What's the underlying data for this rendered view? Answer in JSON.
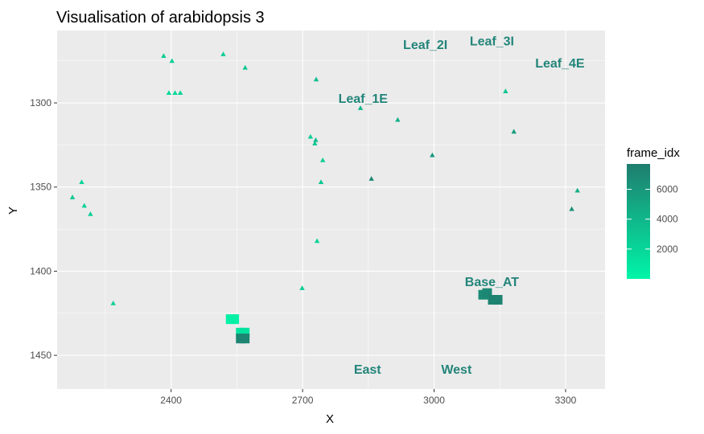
{
  "chart_data": {
    "type": "scatter",
    "title": "Visualisation of arabidopsis  3",
    "xlabel": "X",
    "ylabel": "Y",
    "xlim": [
      2140,
      3390
    ],
    "ylim": [
      1470,
      1257
    ],
    "y_reversed": true,
    "x_ticks": [
      2400,
      2700,
      3000,
      3300
    ],
    "y_ticks": [
      1300,
      1350,
      1400,
      1450
    ],
    "grid": true,
    "legend": {
      "title": "frame_idx",
      "position": "right",
      "min": 0,
      "max": 7700,
      "ticks": [
        2000,
        4000,
        6000
      ],
      "low_color": "#00f5a8",
      "high_color": "#1f7d6e"
    },
    "label_color": "#23857a",
    "triangle_points": [
      {
        "x": 2383,
        "y": 1272,
        "f": 2500
      },
      {
        "x": 2402,
        "y": 1275,
        "f": 2500
      },
      {
        "x": 2519,
        "y": 1271,
        "f": 2500
      },
      {
        "x": 2569,
        "y": 1279,
        "f": 3000
      },
      {
        "x": 2395,
        "y": 1294,
        "f": 1800
      },
      {
        "x": 2409,
        "y": 1294,
        "f": 1800
      },
      {
        "x": 2421,
        "y": 1294,
        "f": 2200
      },
      {
        "x": 2731,
        "y": 1286,
        "f": 3500
      },
      {
        "x": 2832,
        "y": 1303,
        "f": 4000
      },
      {
        "x": 2917,
        "y": 1310,
        "f": 4500
      },
      {
        "x": 3163,
        "y": 1293,
        "f": 3000
      },
      {
        "x": 3182,
        "y": 1317,
        "f": 5500
      },
      {
        "x": 2718,
        "y": 1320,
        "f": 2500
      },
      {
        "x": 2728,
        "y": 1324,
        "f": 3000
      },
      {
        "x": 2730,
        "y": 1322,
        "f": 3500
      },
      {
        "x": 2746,
        "y": 1334,
        "f": 2500
      },
      {
        "x": 2742,
        "y": 1347,
        "f": 2800
      },
      {
        "x": 2996,
        "y": 1331,
        "f": 6000
      },
      {
        "x": 2857,
        "y": 1345,
        "f": 7000
      },
      {
        "x": 2196,
        "y": 1347,
        "f": 2000
      },
      {
        "x": 2175,
        "y": 1356,
        "f": 3000
      },
      {
        "x": 2202,
        "y": 1361,
        "f": 2200
      },
      {
        "x": 2216,
        "y": 1366,
        "f": 2400
      },
      {
        "x": 3327,
        "y": 1352,
        "f": 4500
      },
      {
        "x": 3314,
        "y": 1363,
        "f": 6500
      },
      {
        "x": 2733,
        "y": 1382,
        "f": 2200
      },
      {
        "x": 2699,
        "y": 1410,
        "f": 2500
      },
      {
        "x": 2268,
        "y": 1419,
        "f": 2500
      }
    ],
    "square_points": [
      {
        "x": 2536,
        "y": 1428.5,
        "f": 300
      },
      {
        "x": 2544,
        "y": 1428.5,
        "f": 300
      },
      {
        "x": 2559,
        "y": 1436.5,
        "f": 1000
      },
      {
        "x": 2568,
        "y": 1436.5,
        "f": 1200
      },
      {
        "x": 2559,
        "y": 1440,
        "f": 7200
      },
      {
        "x": 2568,
        "y": 1440,
        "f": 7200
      },
      {
        "x": 3112,
        "y": 1414,
        "f": 6800
      },
      {
        "x": 3121,
        "y": 1413,
        "f": 7000
      },
      {
        "x": 3134,
        "y": 1417,
        "f": 7400
      },
      {
        "x": 3145,
        "y": 1417,
        "f": 7400
      }
    ],
    "leaf_labels": [
      {
        "text": "Leaf_2I",
        "x": 2980,
        "y": 1265
      },
      {
        "text": "Leaf_3I",
        "x": 3132,
        "y": 1263
      },
      {
        "text": "Leaf_4E",
        "x": 3287,
        "y": 1276
      },
      {
        "text": "Leaf_1E",
        "x": 2838,
        "y": 1297
      },
      {
        "text": "Base_AT",
        "x": 3132,
        "y": 1406
      },
      {
        "text": "East",
        "x": 2848,
        "y": 1458
      },
      {
        "text": "West",
        "x": 3051,
        "y": 1458
      }
    ]
  }
}
